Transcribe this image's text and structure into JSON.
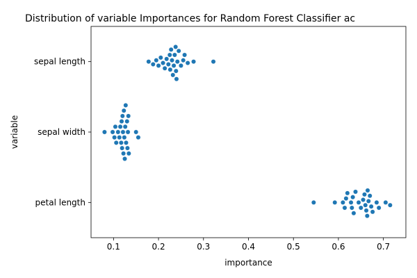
{
  "chart_data": {
    "type": "scatter",
    "subtype": "swarm",
    "title": "Distribution of variable Importances for Random Forest Classifier ac",
    "xlabel": "importance",
    "ylabel": "variable",
    "categories": [
      "sepal length",
      "sepal width",
      "petal length"
    ],
    "xlim": [
      0.05,
      0.75
    ],
    "xticks": [
      0.1,
      0.2,
      0.3,
      0.4,
      0.5,
      0.6,
      0.7
    ],
    "xtick_labels": [
      "0.1",
      "0.2",
      "0.3",
      "0.4",
      "0.5",
      "0.6",
      "0.7"
    ],
    "grid": false,
    "marker_color": "#1f77b4",
    "series": [
      {
        "category": "sepal length",
        "values": [
          0.178,
          0.188,
          0.195,
          0.2,
          0.205,
          0.21,
          0.214,
          0.218,
          0.222,
          0.225,
          0.226,
          0.228,
          0.23,
          0.232,
          0.234,
          0.236,
          0.238,
          0.239,
          0.24,
          0.242,
          0.245,
          0.25,
          0.255,
          0.258,
          0.265,
          0.278,
          0.322
        ]
      },
      {
        "category": "sepal width",
        "values": [
          0.08,
          0.098,
          0.102,
          0.104,
          0.106,
          0.11,
          0.113,
          0.115,
          0.117,
          0.118,
          0.119,
          0.12,
          0.121,
          0.122,
          0.123,
          0.124,
          0.125,
          0.126,
          0.127,
          0.128,
          0.13,
          0.131,
          0.132,
          0.133,
          0.134,
          0.15,
          0.155
        ]
      },
      {
        "category": "petal length",
        "values": [
          0.545,
          0.592,
          0.61,
          0.614,
          0.617,
          0.62,
          0.628,
          0.63,
          0.632,
          0.634,
          0.638,
          0.645,
          0.65,
          0.655,
          0.658,
          0.66,
          0.662,
          0.664,
          0.665,
          0.667,
          0.67,
          0.673,
          0.676,
          0.685,
          0.69,
          0.705,
          0.715
        ]
      }
    ]
  }
}
